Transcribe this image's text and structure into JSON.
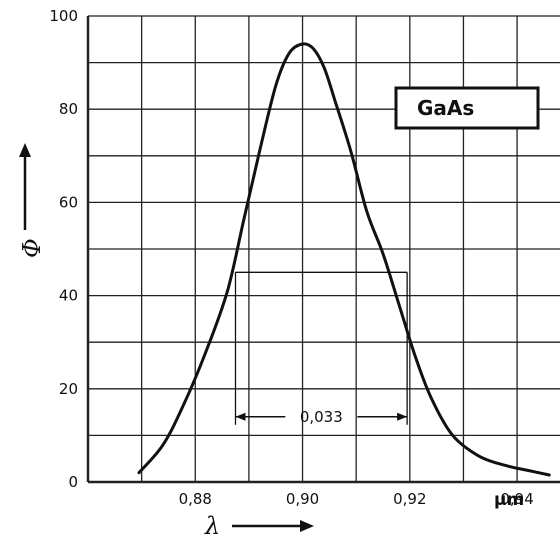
{
  "chart_data": {
    "type": "line",
    "legend": "GaAs",
    "xlabel": "λ",
    "ylabel": "Φ",
    "x_unit": "µm",
    "xlim": [
      0.86,
      0.948
    ],
    "ylim": [
      0,
      100
    ],
    "x_ticks": [
      {
        "value": 0.88,
        "label": "0,88"
      },
      {
        "value": 0.9,
        "label": "0,90"
      },
      {
        "value": 0.92,
        "label": "0,92"
      },
      {
        "value": 0.94,
        "label": "0,94"
      }
    ],
    "y_ticks": [
      {
        "value": 0,
        "label": "0"
      },
      {
        "value": 20,
        "label": "20"
      },
      {
        "value": 40,
        "label": "40"
      },
      {
        "value": 60,
        "label": "60"
      },
      {
        "value": 80,
        "label": "80"
      },
      {
        "value": 100,
        "label": "100"
      }
    ],
    "grid": true,
    "annotation": {
      "label": "0,033",
      "x_start": 0.8875,
      "x_end": 0.9195,
      "y": 14,
      "level_y": 45
    },
    "series": [
      {
        "x": [
          0.8695,
          0.874,
          0.878,
          0.882,
          0.886,
          0.889,
          0.892,
          0.895,
          0.8975,
          0.9,
          0.902,
          0.904,
          0.906,
          0.909,
          0.912,
          0.915,
          0.918,
          0.921,
          0.924,
          0.928,
          0.933,
          0.938,
          0.942,
          0.946
        ],
        "y": [
          2,
          8,
          17,
          28,
          41,
          56,
          71,
          85,
          92,
          94,
          93,
          89,
          82,
          71,
          58,
          49,
          38,
          27,
          18,
          10,
          5.5,
          3.5,
          2.5,
          1.5
        ]
      }
    ]
  }
}
